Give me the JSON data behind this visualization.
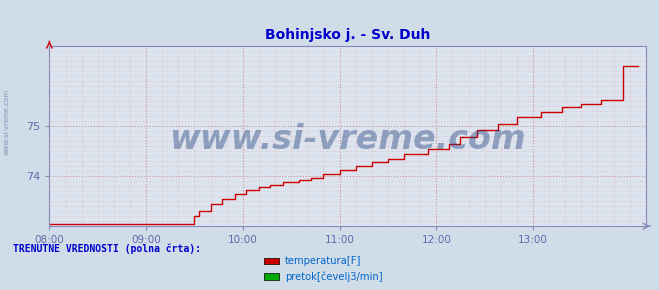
{
  "title": "Bohinjsko j. - Sv. Duh",
  "title_color": "#0000cc",
  "title_fontsize": 10,
  "bg_color": "#d0dce8",
  "plot_bg_color": "#dce4f0",
  "grid_color_minor": "#e8aaaa",
  "grid_color_major": "#cc8888",
  "axis_color": "#8888bb",
  "tick_color": "#6666aa",
  "xlim_min": 0,
  "xlim_max": 370,
  "ylim_min": 73.0,
  "ylim_max": 76.6,
  "yticks": [
    74,
    75
  ],
  "xtick_labels": [
    "08:00",
    "09:00",
    "10:00",
    "11:00",
    "12:00",
    "13:00"
  ],
  "xtick_positions": [
    0,
    60,
    120,
    180,
    240,
    300
  ],
  "line_color": "#cc0000",
  "line_width": 1.0,
  "watermark_text": "www.si-vreme.com",
  "watermark_color": "#1a3a7a",
  "watermark_alpha": 0.4,
  "watermark_fontsize": 24,
  "legend_title": "TRENUTNE VREDNOSTI (polna črta):",
  "legend_title_color": "#0000cc",
  "legend_items": [
    "temperatura[F]",
    "pretok[čevelj3/min]"
  ],
  "legend_colors": [
    "#cc0000",
    "#00aa00"
  ],
  "sidebar_text": "www.si-vreme.com",
  "sidebar_color": "#7788aa",
  "temp_data_x": [
    0,
    90,
    90,
    93,
    93,
    100,
    100,
    107,
    107,
    115,
    115,
    122,
    122,
    130,
    130,
    137,
    137,
    145,
    145,
    155,
    155,
    162,
    162,
    170,
    170,
    180,
    180,
    190,
    190,
    200,
    200,
    210,
    210,
    220,
    220,
    235,
    235,
    248,
    248,
    255,
    255,
    265,
    265,
    278,
    278,
    290,
    290,
    305,
    305,
    318,
    318,
    330,
    330,
    342,
    342,
    356,
    356,
    365
  ],
  "temp_data_y": [
    73.05,
    73.05,
    73.2,
    73.2,
    73.3,
    73.3,
    73.45,
    73.45,
    73.55,
    73.55,
    73.65,
    73.65,
    73.72,
    73.72,
    73.78,
    73.78,
    73.82,
    73.82,
    73.88,
    73.88,
    73.93,
    73.93,
    73.97,
    73.97,
    74.05,
    74.05,
    74.12,
    74.12,
    74.2,
    74.2,
    74.28,
    74.28,
    74.35,
    74.35,
    74.45,
    74.45,
    74.55,
    74.55,
    74.65,
    74.65,
    74.78,
    74.78,
    74.92,
    74.92,
    75.05,
    75.05,
    75.18,
    75.18,
    75.28,
    75.28,
    75.38,
    75.38,
    75.45,
    75.45,
    75.52,
    75.52,
    76.2,
    76.2
  ]
}
